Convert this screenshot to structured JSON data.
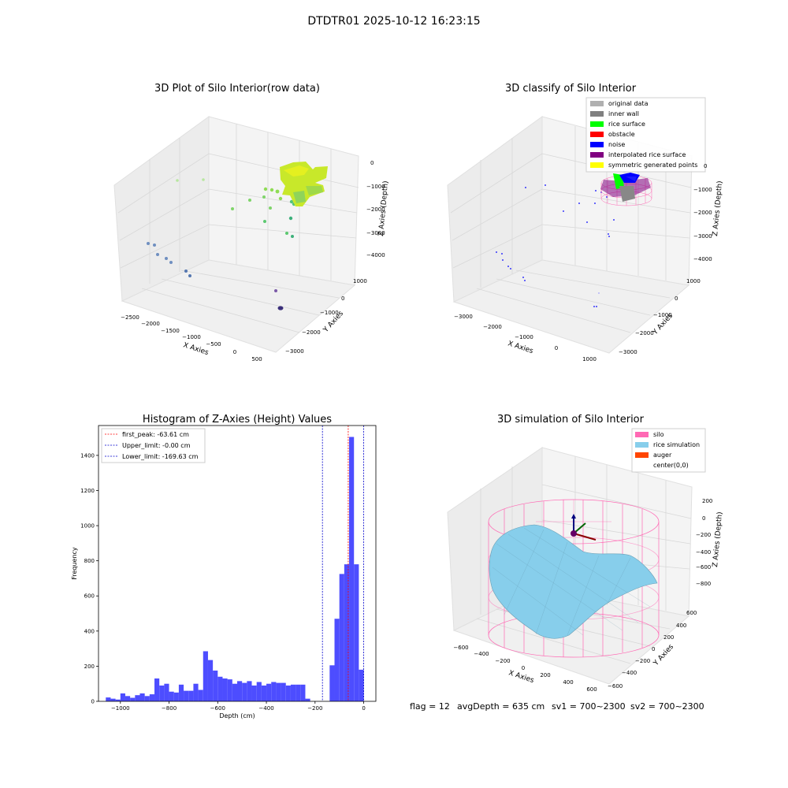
{
  "figure_title": "DTDTR01 2025-10-12 16:23:15",
  "bottom_caption": {
    "flag": "flag = 12",
    "avg": "avgDepth = 635 cm",
    "sv1": "sv1 = 700~2300",
    "sv2": "sv2 = 700~2300"
  },
  "colors": {
    "hist_bar": "#4d4dff",
    "first_peak": "#ff0000",
    "limits": "#0000cc",
    "silo": "#ff69b4",
    "rice": "#87ceeb",
    "auger": "#ff4500",
    "noise": "#0000ff",
    "rice_surface": "#00ff00",
    "interp": "#800080"
  },
  "chart_data": [
    {
      "type": "scatter",
      "title": "3D Plot of Silo Interior(row data)",
      "xlabel": "X Axies",
      "ylabel": "Y Axies",
      "zlabel": "Z Axies (Depth)",
      "x_ticks": [
        "−2500",
        "−2000",
        "−1500",
        "−1000",
        "−500",
        "0",
        "500"
      ],
      "y_ticks": [
        "1000",
        "0",
        "−1000",
        "−2000",
        "−3000"
      ],
      "z_ticks": [
        "0",
        "−1000",
        "−2000",
        "−3000",
        "−4000"
      ]
    },
    {
      "type": "scatter",
      "title": "3D classify of Silo Interior",
      "xlabel": "X Axies",
      "ylabel": "Y Axies",
      "zlabel": "Z Axies (Depth)",
      "x_ticks": [
        "−3000",
        "−2000",
        "−1000",
        "0",
        "1000"
      ],
      "y_ticks": [
        "1000",
        "0",
        "−1000",
        "−2000",
        "−3000"
      ],
      "z_ticks": [
        "0",
        "−1000",
        "−2000",
        "−3000",
        "−4000"
      ],
      "legend": [
        {
          "label": "original data",
          "color": "#b0b0b0"
        },
        {
          "label": "inner wall",
          "color": "#808080"
        },
        {
          "label": "rice surface",
          "color": "#00ff00"
        },
        {
          "label": "obstacle",
          "color": "#ff0000"
        },
        {
          "label": "noise",
          "color": "#0000ff"
        },
        {
          "label": "interpolated rice surface",
          "color": "#800080"
        },
        {
          "label": "symmetric generated points",
          "color": "#ffff00"
        }
      ]
    },
    {
      "type": "bar",
      "title": "Histogram of Z-Axies (Height) Values",
      "xlabel": "Depth (cm)",
      "ylabel": "Frequency",
      "xlim": [
        -1090,
        50
      ],
      "ylim": [
        0,
        1570
      ],
      "x_ticks": [
        -1000,
        -800,
        -600,
        -400,
        -200,
        0
      ],
      "y_ticks": [
        0,
        200,
        400,
        600,
        800,
        1000,
        1200,
        1400
      ],
      "bin_width": 20,
      "bins_start": [
        -1060,
        -1040,
        -1020,
        -1000,
        -980,
        -960,
        -940,
        -920,
        -900,
        -880,
        -860,
        -840,
        -820,
        -800,
        -780,
        -760,
        -740,
        -720,
        -700,
        -680,
        -660,
        -640,
        -620,
        -600,
        -580,
        -560,
        -540,
        -520,
        -500,
        -480,
        -460,
        -440,
        -420,
        -400,
        -380,
        -360,
        -340,
        -320,
        -300,
        -280,
        -260,
        -240,
        -220,
        -200,
        -180,
        -160,
        -140,
        -120,
        -100,
        -80,
        -60,
        -40,
        -20
      ],
      "values": [
        22,
        15,
        10,
        45,
        30,
        20,
        35,
        45,
        30,
        40,
        130,
        90,
        100,
        55,
        50,
        95,
        60,
        60,
        100,
        65,
        285,
        235,
        175,
        140,
        130,
        125,
        100,
        115,
        105,
        115,
        90,
        110,
        90,
        100,
        110,
        105,
        105,
        90,
        95,
        95,
        95,
        15,
        0,
        0,
        0,
        0,
        205,
        470,
        725,
        780,
        1505,
        780,
        180
      ],
      "lines": [
        {
          "label": "first_peak: -63.61 cm",
          "value": -63.61,
          "color": "#ff0000"
        },
        {
          "label": "Upper_limit: -0.00 cm",
          "value": 0.0,
          "color": "#0000cc"
        },
        {
          "label": "Lower_limit: -169.63 cm",
          "value": -169.63,
          "color": "#0000cc"
        }
      ]
    },
    {
      "type": "area",
      "title": "3D simulation of Silo Interior",
      "xlabel": "X Axies",
      "ylabel": "Y Axies",
      "zlabel": "Z Axies (Depth)",
      "x_ticks": [
        "−600",
        "−400",
        "−200",
        "0",
        "200",
        "400",
        "600"
      ],
      "y_ticks": [
        "600",
        "400",
        "200",
        "0",
        "−200",
        "−400",
        "−600"
      ],
      "z_ticks": [
        "200",
        "0",
        "−200",
        "−400",
        "−600",
        "−800"
      ],
      "legend": [
        {
          "label": "silo",
          "color": "#ff69b4"
        },
        {
          "label": "rice simulation",
          "color": "#87ceeb"
        },
        {
          "label": "auger",
          "color": "#ff4500"
        },
        {
          "label": "center(0,0)",
          "color": ""
        }
      ]
    }
  ]
}
